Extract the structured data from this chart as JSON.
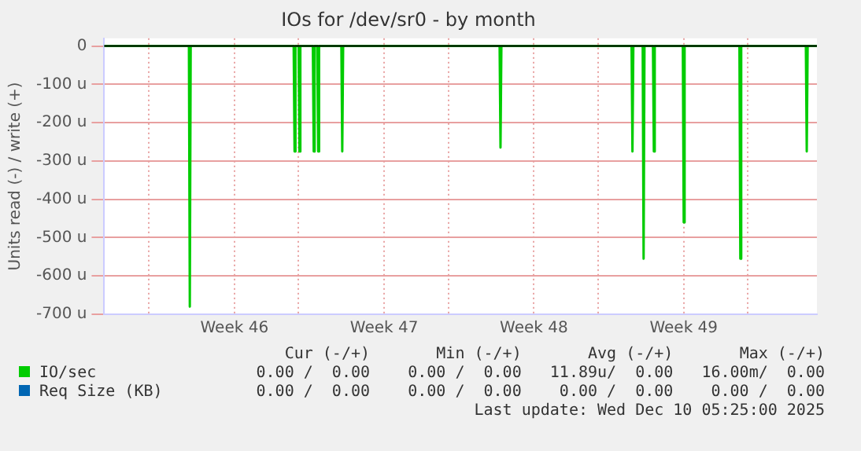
{
  "chart_data": {
    "type": "area",
    "title": "IOs for /dev/sr0 - by month",
    "ylabel": "Units read (-) / write (+)",
    "xlim": [
      "2025-11-06T22:00",
      "2025-12-10T05:25"
    ],
    "xticks": [
      {
        "value": "2025-11-09",
        "label": null
      },
      {
        "value": "2025-11-13",
        "label": "Week 46"
      },
      {
        "value": "2025-11-16",
        "label": null
      },
      {
        "value": "2025-11-20",
        "label": "Week 47"
      },
      {
        "value": "2025-11-23",
        "label": null
      },
      {
        "value": "2025-11-27",
        "label": "Week 48"
      },
      {
        "value": "2025-11-30",
        "label": null
      },
      {
        "value": "2025-12-04",
        "label": "Week 49"
      },
      {
        "value": "2025-12-07",
        "label": null
      }
    ],
    "ylim": [
      -700,
      20
    ],
    "yticks": [
      {
        "value": -700,
        "label": "-700 u"
      },
      {
        "value": -600,
        "label": "-600 u"
      },
      {
        "value": -500,
        "label": "-500 u"
      },
      {
        "value": -400,
        "label": "-400 u"
      },
      {
        "value": -300,
        "label": "-300 u"
      },
      {
        "value": -200,
        "label": "-200 u"
      },
      {
        "value": -100,
        "label": "-100 u"
      },
      0
    ],
    "grid": true,
    "legend": "bottom",
    "series": [
      {
        "name": "IO/sec",
        "color": "#00cc00",
        "x": [
          "2025-11-06T22:00",
          "2025-11-10T21:00",
          "2025-11-10T22:00",
          "2025-11-10T23:00",
          "2025-11-15T18:30",
          "2025-11-15T19:30",
          "2025-11-15T20:30",
          "2025-11-16T00:00",
          "2025-11-16T01:00",
          "2025-11-16T02:00",
          "2025-11-16T16:00",
          "2025-11-16T17:00",
          "2025-11-16T18:00",
          "2025-11-16T21:00",
          "2025-11-16T22:00",
          "2025-11-16T23:00",
          "2025-11-18T00:00",
          "2025-11-18T01:00",
          "2025-11-18T02:00",
          "2025-11-25T09:30",
          "2025-11-25T10:30",
          "2025-11-25T11:30",
          "2025-12-01T13:30",
          "2025-12-01T14:30",
          "2025-12-01T15:30",
          "2025-12-02T02:00",
          "2025-12-02T03:00",
          "2025-12-02T04:00",
          "2025-12-02T13:30",
          "2025-12-02T14:30",
          "2025-12-02T15:30",
          "2025-12-03T23:00",
          "2025-12-04T00:00",
          "2025-12-04T01:00",
          "2025-12-06T14:30",
          "2025-12-06T15:30",
          "2025-12-06T16:30",
          "2025-12-09T17:00",
          "2025-12-09T18:00",
          "2025-12-09T19:00",
          "2025-12-10T05:25"
        ],
        "values": [
          0,
          0,
          -680,
          0,
          0,
          -275,
          0,
          0,
          -275,
          0,
          0,
          -275,
          0,
          0,
          -275,
          0,
          0,
          -275,
          0,
          0,
          -265,
          0,
          0,
          -275,
          0,
          0,
          -555,
          0,
          0,
          -275,
          0,
          0,
          -460,
          0,
          0,
          -555,
          0,
          0,
          -275,
          0,
          0
        ]
      },
      {
        "name": "Req Size (KB)",
        "color": "#0066b3"
      }
    ],
    "annotations": [
      "Cur (-/+)       Min (-/+)       Avg (-/+)       Max (-/+)",
      "0.00 /  0.00    0.00 /  0.00   11.89u/  0.00   16.00m/  0.00",
      "0.00 /  0.00    0.00 /  0.00    0.00 /  0.00    0.00 /  0.00",
      "Last update: Wed Dec 10 05:25:00 2025"
    ]
  }
}
